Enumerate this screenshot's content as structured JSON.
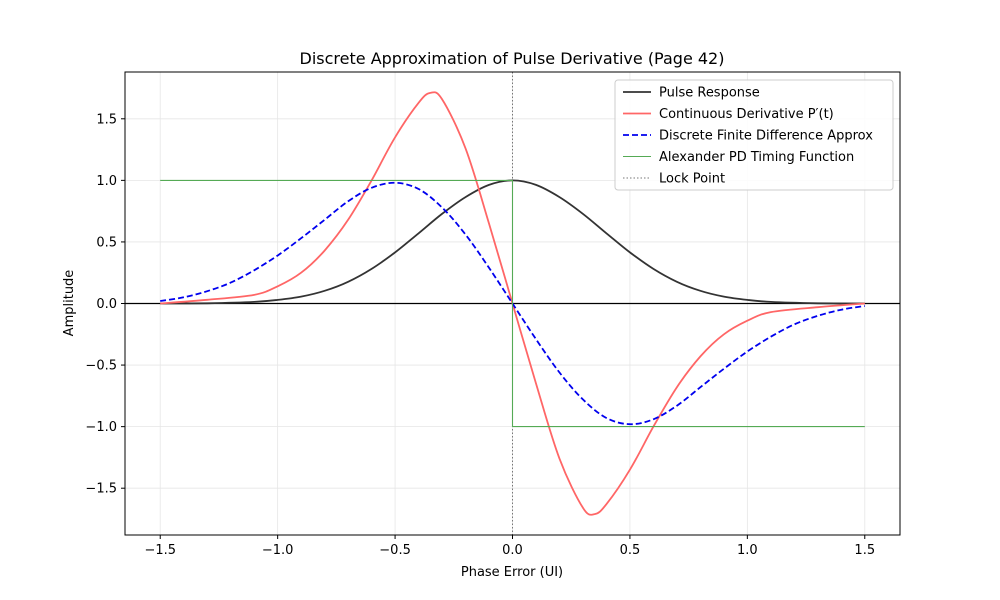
{
  "chart_data": {
    "type": "line",
    "title": "Discrete Approximation of Pulse Derivative (Page 42)",
    "xlabel": "Phase Error (UI)",
    "ylabel": "Amplitude",
    "xlim": [
      -1.65,
      1.65
    ],
    "ylim": [
      -1.88,
      1.88
    ],
    "x_ticks": [
      -1.5,
      -1.0,
      -0.5,
      0.0,
      0.5,
      1.0,
      1.5
    ],
    "y_ticks": [
      -1.5,
      -1.0,
      -0.5,
      0.0,
      0.5,
      1.0,
      1.5
    ],
    "x_tick_labels": [
      "−1.5",
      "−1.0",
      "−0.5",
      "0.0",
      "0.5",
      "1.0",
      "1.5"
    ],
    "y_tick_labels": [
      "−1.5",
      "−1.0",
      "−0.5",
      "0.0",
      "0.5",
      "1.0",
      "1.5"
    ],
    "grid": true,
    "legend_position": "top-right",
    "series": [
      {
        "name": "Pulse Response",
        "color": "#333333",
        "style": "solid",
        "x": [
          -1.5,
          -1.3,
          -1.1,
          -1.0,
          -0.9,
          -0.8,
          -0.7,
          -0.6,
          -0.5,
          -0.4,
          -0.3,
          -0.2,
          -0.1,
          0.0,
          0.1,
          0.2,
          0.3,
          0.4,
          0.5,
          0.6,
          0.7,
          0.8,
          0.9,
          1.0,
          1.1,
          1.3,
          1.5
        ],
        "y": [
          0.0,
          0.002,
          0.013,
          0.029,
          0.056,
          0.103,
          0.176,
          0.281,
          0.415,
          0.57,
          0.728,
          0.864,
          0.963,
          1.0,
          0.963,
          0.864,
          0.728,
          0.57,
          0.415,
          0.281,
          0.176,
          0.103,
          0.056,
          0.029,
          0.013,
          0.002,
          0.0
        ]
      },
      {
        "name": "Continuous Derivative P′(t)",
        "color": "#ff6666",
        "style": "solid",
        "x": [
          -1.5,
          -1.3,
          -1.1,
          -1.0,
          -0.9,
          -0.8,
          -0.7,
          -0.6,
          -0.5,
          -0.4,
          -0.35,
          -0.3,
          -0.2,
          -0.1,
          0.0,
          0.1,
          0.2,
          0.3,
          0.35,
          0.4,
          0.5,
          0.6,
          0.7,
          0.8,
          0.9,
          1.0,
          1.1,
          1.3,
          1.5
        ],
        "y": [
          0.0,
          0.03,
          0.07,
          0.14,
          0.25,
          0.43,
          0.68,
          1.0,
          1.35,
          1.63,
          1.71,
          1.66,
          1.26,
          0.65,
          0.0,
          -0.65,
          -1.26,
          -1.66,
          -1.71,
          -1.63,
          -1.35,
          -1.0,
          -0.68,
          -0.43,
          -0.25,
          -0.14,
          -0.07,
          -0.03,
          0.0
        ]
      },
      {
        "name": "Discrete Finite Difference Approx",
        "color": "#0000ee",
        "style": "dashed",
        "x": [
          -1.5,
          -1.4,
          -1.3,
          -1.2,
          -1.1,
          -1.0,
          -0.9,
          -0.8,
          -0.7,
          -0.6,
          -0.5,
          -0.4,
          -0.3,
          -0.2,
          -0.1,
          0.0,
          0.1,
          0.2,
          0.3,
          0.4,
          0.5,
          0.6,
          0.7,
          0.8,
          0.9,
          1.0,
          1.1,
          1.2,
          1.3,
          1.4,
          1.5
        ],
        "y": [
          0.02,
          0.05,
          0.1,
          0.17,
          0.27,
          0.39,
          0.53,
          0.68,
          0.83,
          0.94,
          0.98,
          0.93,
          0.78,
          0.56,
          0.29,
          0.0,
          -0.29,
          -0.56,
          -0.78,
          -0.93,
          -0.98,
          -0.94,
          -0.83,
          -0.68,
          -0.53,
          -0.39,
          -0.27,
          -0.17,
          -0.1,
          -0.05,
          -0.02
        ]
      },
      {
        "name": "Alexander PD Timing Function",
        "color": "#55aa55",
        "style": "solid",
        "x": [
          -1.5,
          0.0,
          0.0,
          1.5
        ],
        "y": [
          1.0,
          1.0,
          -1.0,
          -1.0
        ]
      }
    ],
    "reference_lines": [
      {
        "name": "Lock Point",
        "orientation": "vertical",
        "x": 0.0,
        "color": "#777777",
        "style": "dotted"
      },
      {
        "name": "",
        "orientation": "horizontal",
        "y": 0.0,
        "color": "#000000",
        "style": "solid"
      }
    ],
    "legend": [
      {
        "label": "Pulse Response",
        "color": "#333333",
        "style": "solid"
      },
      {
        "label": "Continuous Derivative P′(t)",
        "color": "#ff6666",
        "style": "solid"
      },
      {
        "label": "Discrete Finite Difference Approx",
        "color": "#0000ee",
        "style": "dashed"
      },
      {
        "label": "Alexander PD Timing Function",
        "color": "#55aa55",
        "style": "solid"
      },
      {
        "label": "Lock Point",
        "color": "#777777",
        "style": "dotted"
      }
    ]
  }
}
